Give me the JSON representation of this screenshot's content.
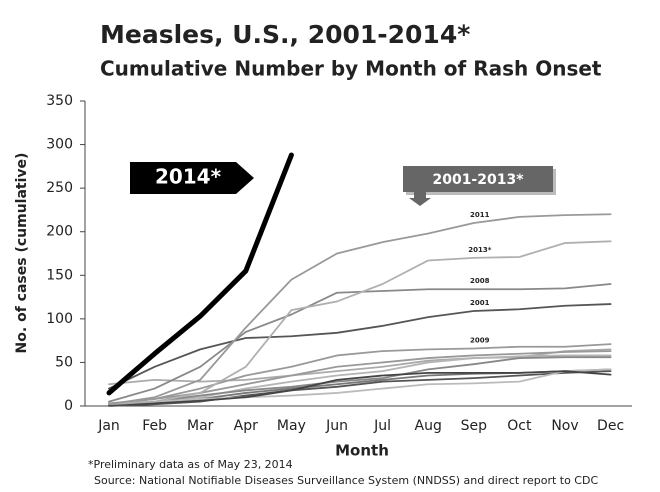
{
  "chart_data": {
    "type": "line",
    "title": "Measles, U.S., 2001-2014*",
    "subtitle": "Cumulative Number by Month of Rash Onset",
    "xlabel": "Month",
    "ylabel": "No. of cases (cumulative)",
    "categories": [
      "Jan",
      "Feb",
      "Mar",
      "Apr",
      "May",
      "Jun",
      "Jul",
      "Aug",
      "Sep",
      "Oct",
      "Nov",
      "Dec"
    ],
    "ylim": [
      0,
      350
    ],
    "yticks": [
      0,
      50,
      100,
      150,
      200,
      250,
      300,
      350
    ],
    "annotations": [
      "2014*",
      "2001-2013*"
    ],
    "footnotes": [
      "*Preliminary data as of May 23, 2014",
      "Source:  National Notifiable Diseases Surveillance System (NNDSS)  and direct report to CDC"
    ],
    "series": [
      {
        "color": "#aaaaaa",
        "values": [
          25,
          30,
          28,
          30,
          35,
          40,
          45,
          52,
          55,
          56,
          63,
          65
        ]
      },
      {
        "color": "#999999",
        "values": [
          2,
          8,
          15,
          25,
          35,
          45,
          50,
          55,
          58,
          60,
          62,
          63
        ]
      },
      {
        "color": "#b5b5b5",
        "values": [
          1,
          5,
          10,
          20,
          28,
          35,
          40,
          50,
          55,
          57,
          58,
          58
        ]
      },
      {
        "color": "#888888",
        "values": [
          2,
          5,
          12,
          18,
          22,
          28,
          32,
          42,
          48,
          55,
          56,
          56
        ]
      },
      {
        "color": "#777777",
        "values": [
          1,
          3,
          8,
          15,
          20,
          25,
          30,
          35,
          37,
          38,
          40,
          42
        ]
      },
      {
        "color": "#555555",
        "values": [
          0,
          2,
          5,
          12,
          18,
          22,
          28,
          30,
          32,
          35,
          38,
          40
        ]
      },
      {
        "color": "#bbbbbb",
        "values": [
          3,
          5,
          8,
          10,
          12,
          15,
          20,
          25,
          26,
          28,
          40,
          42
        ]
      },
      {
        "color": "#444444",
        "values": [
          1,
          3,
          6,
          10,
          18,
          30,
          35,
          38,
          38,
          38,
          40,
          36
        ]
      },
      {
        "name": "2009",
        "color": "#999999",
        "values": [
          3,
          8,
          20,
          35,
          45,
          58,
          63,
          65,
          66,
          68,
          68,
          71
        ]
      },
      {
        "name": "2001",
        "color": "#555555",
        "values": [
          20,
          45,
          65,
          78,
          80,
          84,
          92,
          102,
          109,
          111,
          115,
          117
        ]
      },
      {
        "name": "2008",
        "color": "#888888",
        "values": [
          5,
          20,
          45,
          85,
          105,
          130,
          132,
          134,
          134,
          134,
          135,
          140
        ]
      },
      {
        "name": "2013*",
        "color": "#b0b0b0",
        "values": [
          2,
          5,
          15,
          45,
          110,
          120,
          140,
          167,
          170,
          171,
          187,
          189
        ]
      },
      {
        "name": "2011",
        "color": "#999999",
        "values": [
          2,
          10,
          30,
          90,
          145,
          175,
          188,
          198,
          210,
          217,
          219,
          220
        ]
      },
      {
        "name": "2014*",
        "color": "#000000",
        "values": [
          15,
          60,
          103,
          155,
          288,
          null,
          null,
          null,
          null,
          null,
          null,
          null
        ]
      }
    ]
  }
}
